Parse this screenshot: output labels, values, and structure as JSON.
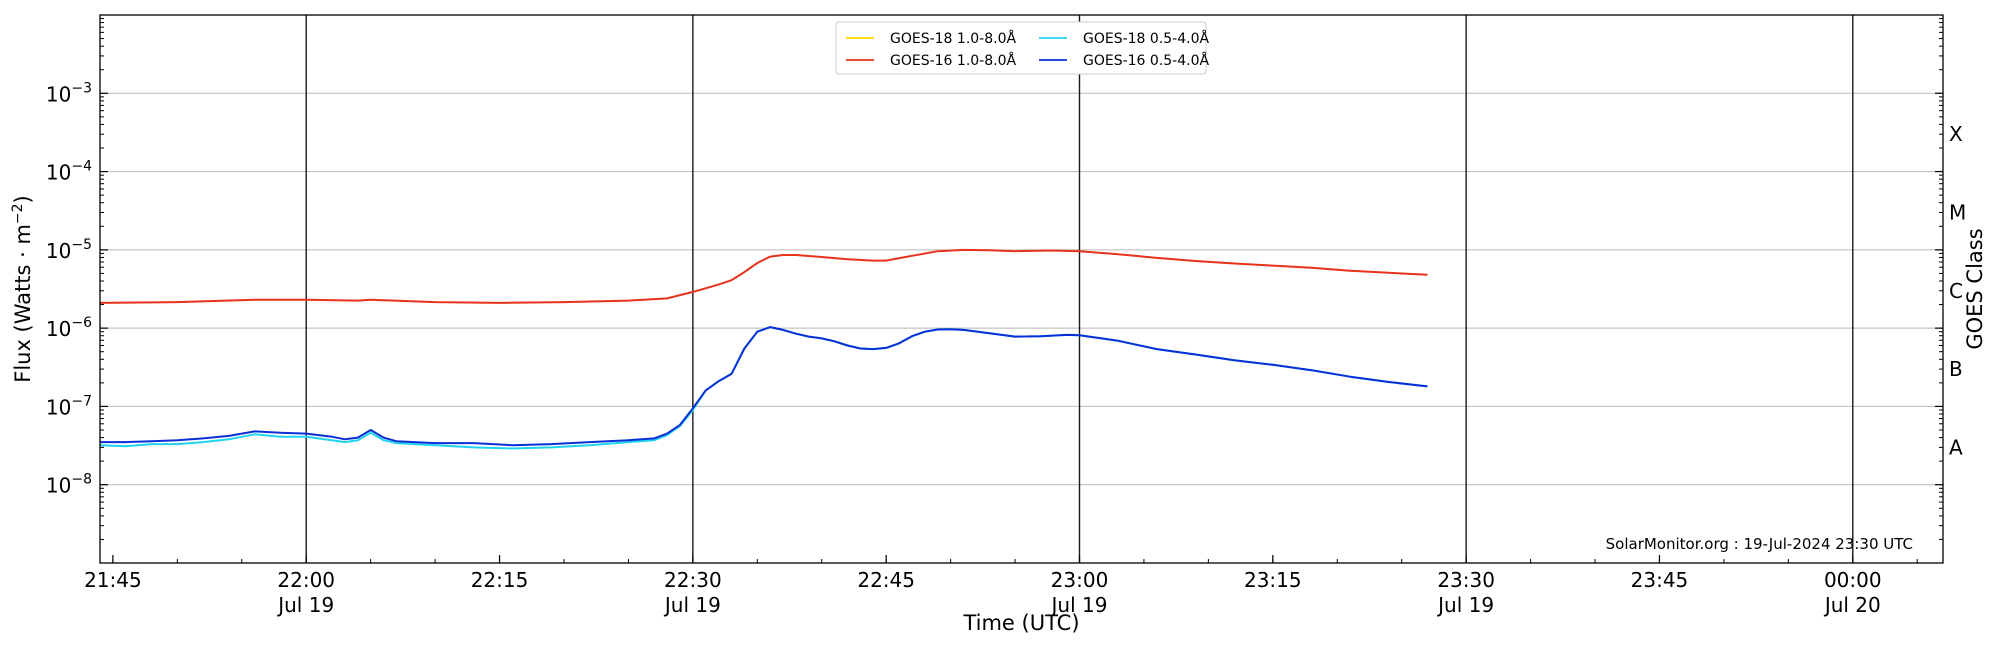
{
  "chart_data": {
    "type": "line",
    "xlabel": "Time (UTC)",
    "ylabel_main": "Flux (Watts",
    "ylabel_mid": " · m",
    "ylabel_sup": "−2",
    "ylabel_end": ")",
    "ylabel_right": "GOES Class",
    "y_scale": "log",
    "ylim": [
      1e-09,
      0.01
    ],
    "xlim": [
      "2024-07-19 21:44",
      "2024-07-20 00:07"
    ],
    "y_ticks": [
      {
        "value": 1e-08,
        "base": "10",
        "exp": "−8"
      },
      {
        "value": 1e-07,
        "base": "10",
        "exp": "−7"
      },
      {
        "value": 1e-06,
        "base": "10",
        "exp": "−6"
      },
      {
        "value": 1e-05,
        "base": "10",
        "exp": "−5"
      },
      {
        "value": 0.0001,
        "base": "10",
        "exp": "−4"
      },
      {
        "value": 0.001,
        "base": "10",
        "exp": "−3"
      }
    ],
    "x_ticks": [
      {
        "time": "2024-07-19 21:45",
        "label": "21:45",
        "sublabel": ""
      },
      {
        "time": "2024-07-19 22:00",
        "label": "22:00",
        "sublabel": "Jul 19"
      },
      {
        "time": "2024-07-19 22:15",
        "label": "22:15",
        "sublabel": ""
      },
      {
        "time": "2024-07-19 22:30",
        "label": "22:30",
        "sublabel": "Jul 19"
      },
      {
        "time": "2024-07-19 22:45",
        "label": "22:45",
        "sublabel": ""
      },
      {
        "time": "2024-07-19 23:00",
        "label": "23:00",
        "sublabel": "Jul 19"
      },
      {
        "time": "2024-07-19 23:15",
        "label": "23:15",
        "sublabel": ""
      },
      {
        "time": "2024-07-19 23:30",
        "label": "23:30",
        "sublabel": "Jul 19"
      },
      {
        "time": "2024-07-19 23:45",
        "label": "23:45",
        "sublabel": ""
      },
      {
        "time": "2024-07-20 00:00",
        "label": "00:00",
        "sublabel": "Jul 20"
      }
    ],
    "vertical_lines": [
      "2024-07-19 22:00",
      "2024-07-19 22:30",
      "2024-07-19 23:00",
      "2024-07-19 23:30",
      "2024-07-20 00:00"
    ],
    "class_labels": [
      {
        "label": "A",
        "value": 3e-08
      },
      {
        "label": "B",
        "value": 3e-07
      },
      {
        "label": "C",
        "value": 3e-06
      },
      {
        "label": "M",
        "value": 3e-05
      },
      {
        "label": "X",
        "value": 0.0003
      }
    ],
    "grid": "horizontal at decades",
    "legend_position": "top-center",
    "credit": "SolarMonitor.org : 19-Jul-2024 23:30 UTC",
    "series": [
      {
        "name": "GOES-18 1.0-8.0Å",
        "color": "#ffd700",
        "points": []
      },
      {
        "name": "GOES-18 0.5-4.0Å",
        "color": "#22d3ee",
        "points": [
          [
            "2024-07-19 21:44",
            3.2e-08
          ],
          [
            "2024-07-19 21:46",
            3.1e-08
          ],
          [
            "2024-07-19 21:48",
            3.3e-08
          ],
          [
            "2024-07-19 21:50",
            3.3e-08
          ],
          [
            "2024-07-19 21:52",
            3.5e-08
          ],
          [
            "2024-07-19 21:54",
            3.8e-08
          ],
          [
            "2024-07-19 21:56",
            4.4e-08
          ],
          [
            "2024-07-19 21:58",
            4.1e-08
          ],
          [
            "2024-07-19 22:00",
            4.1e-08
          ],
          [
            "2024-07-19 22:02",
            3.7e-08
          ],
          [
            "2024-07-19 22:03",
            3.5e-08
          ],
          [
            "2024-07-19 22:04",
            3.7e-08
          ],
          [
            "2024-07-19 22:05",
            4.6e-08
          ],
          [
            "2024-07-19 22:06",
            3.7e-08
          ],
          [
            "2024-07-19 22:07",
            3.4e-08
          ],
          [
            "2024-07-19 22:10",
            3.2e-08
          ],
          [
            "2024-07-19 22:13",
            3e-08
          ],
          [
            "2024-07-19 22:16",
            2.9e-08
          ],
          [
            "2024-07-19 22:19",
            3e-08
          ],
          [
            "2024-07-19 22:22",
            3.2e-08
          ],
          [
            "2024-07-19 22:25",
            3.5e-08
          ],
          [
            "2024-07-19 22:27",
            3.7e-08
          ],
          [
            "2024-07-19 22:28",
            4.3e-08
          ],
          [
            "2024-07-19 22:29",
            5.6e-08
          ],
          [
            "2024-07-19 22:30",
            9e-08
          ],
          [
            "2024-07-19 22:31",
            1.6e-07
          ],
          [
            "2024-07-19 22:32",
            2.1e-07
          ],
          [
            "2024-07-19 22:33",
            2.6e-07
          ],
          [
            "2024-07-19 22:34",
            5.5e-07
          ],
          [
            "2024-07-19 22:35",
            9e-07
          ],
          [
            "2024-07-19 22:36",
            1.03e-06
          ],
          [
            "2024-07-19 22:37",
            9.5e-07
          ],
          [
            "2024-07-19 22:38",
            8.5e-07
          ],
          [
            "2024-07-19 22:39",
            7.8e-07
          ],
          [
            "2024-07-19 22:40",
            7.4e-07
          ],
          [
            "2024-07-19 22:41",
            6.8e-07
          ],
          [
            "2024-07-19 22:42",
            6e-07
          ],
          [
            "2024-07-19 22:43",
            5.5e-07
          ],
          [
            "2024-07-19 22:44",
            5.4e-07
          ],
          [
            "2024-07-19 22:45",
            5.6e-07
          ],
          [
            "2024-07-19 22:46",
            6.4e-07
          ],
          [
            "2024-07-19 22:47",
            7.9e-07
          ],
          [
            "2024-07-19 22:48",
            9e-07
          ],
          [
            "2024-07-19 22:49",
            9.6e-07
          ],
          [
            "2024-07-19 22:50",
            9.7e-07
          ],
          [
            "2024-07-19 22:51",
            9.5e-07
          ],
          [
            "2024-07-19 22:53",
            8.6e-07
          ],
          [
            "2024-07-19 22:55",
            7.8e-07
          ],
          [
            "2024-07-19 22:57",
            7.9e-07
          ],
          [
            "2024-07-19 22:59",
            8.2e-07
          ],
          [
            "2024-07-19 23:00",
            8.1e-07
          ],
          [
            "2024-07-19 23:03",
            6.9e-07
          ],
          [
            "2024-07-19 23:06",
            5.4e-07
          ],
          [
            "2024-07-19 23:09",
            4.6e-07
          ],
          [
            "2024-07-19 23:12",
            3.9e-07
          ],
          [
            "2024-07-19 23:15",
            3.4e-07
          ],
          [
            "2024-07-19 23:18",
            2.9e-07
          ],
          [
            "2024-07-19 23:21",
            2.4e-07
          ],
          [
            "2024-07-19 23:24",
            2.05e-07
          ],
          [
            "2024-07-19 23:27",
            1.8e-07
          ]
        ]
      },
      {
        "name": "GOES-16 1.0-8.0Å",
        "color": "#e8321c",
        "points": [
          [
            "2024-07-19 21:44",
            2.1e-06
          ],
          [
            "2024-07-19 21:50",
            2.15e-06
          ],
          [
            "2024-07-19 21:56",
            2.3e-06
          ],
          [
            "2024-07-19 22:00",
            2.3e-06
          ],
          [
            "2024-07-19 22:04",
            2.25e-06
          ],
          [
            "2024-07-19 22:05",
            2.3e-06
          ],
          [
            "2024-07-19 22:10",
            2.15e-06
          ],
          [
            "2024-07-19 22:15",
            2.1e-06
          ],
          [
            "2024-07-19 22:20",
            2.15e-06
          ],
          [
            "2024-07-19 22:25",
            2.25e-06
          ],
          [
            "2024-07-19 22:28",
            2.4e-06
          ],
          [
            "2024-07-19 22:30",
            2.9e-06
          ],
          [
            "2024-07-19 22:32",
            3.6e-06
          ],
          [
            "2024-07-19 22:33",
            4.1e-06
          ],
          [
            "2024-07-19 22:34",
            5.2e-06
          ],
          [
            "2024-07-19 22:35",
            6.8e-06
          ],
          [
            "2024-07-19 22:36",
            8.2e-06
          ],
          [
            "2024-07-19 22:37",
            8.6e-06
          ],
          [
            "2024-07-19 22:38",
            8.6e-06
          ],
          [
            "2024-07-19 22:40",
            8.1e-06
          ],
          [
            "2024-07-19 22:42",
            7.6e-06
          ],
          [
            "2024-07-19 22:44",
            7.3e-06
          ],
          [
            "2024-07-19 22:45",
            7.3e-06
          ],
          [
            "2024-07-19 22:47",
            8.4e-06
          ],
          [
            "2024-07-19 22:49",
            9.6e-06
          ],
          [
            "2024-07-19 22:51",
            1e-05
          ],
          [
            "2024-07-19 22:53",
            9.9e-06
          ],
          [
            "2024-07-19 22:55",
            9.6e-06
          ],
          [
            "2024-07-19 22:58",
            9.8e-06
          ],
          [
            "2024-07-19 23:00",
            9.6e-06
          ],
          [
            "2024-07-19 23:03",
            8.8e-06
          ],
          [
            "2024-07-19 23:06",
            7.9e-06
          ],
          [
            "2024-07-19 23:09",
            7.2e-06
          ],
          [
            "2024-07-19 23:12",
            6.7e-06
          ],
          [
            "2024-07-19 23:15",
            6.3e-06
          ],
          [
            "2024-07-19 23:18",
            5.9e-06
          ],
          [
            "2024-07-19 23:21",
            5.4e-06
          ],
          [
            "2024-07-19 23:24",
            5.1e-06
          ],
          [
            "2024-07-19 23:27",
            4.8e-06
          ]
        ]
      },
      {
        "name": "GOES-16 0.5-4.0Å",
        "color": "#0a2fd6",
        "points": [
          [
            "2024-07-19 21:44",
            3.5e-08
          ],
          [
            "2024-07-19 21:46",
            3.5e-08
          ],
          [
            "2024-07-19 21:48",
            3.6e-08
          ],
          [
            "2024-07-19 21:50",
            3.7e-08
          ],
          [
            "2024-07-19 21:52",
            3.9e-08
          ],
          [
            "2024-07-19 21:54",
            4.2e-08
          ],
          [
            "2024-07-19 21:56",
            4.8e-08
          ],
          [
            "2024-07-19 21:58",
            4.6e-08
          ],
          [
            "2024-07-19 22:00",
            4.5e-08
          ],
          [
            "2024-07-19 22:02",
            4.1e-08
          ],
          [
            "2024-07-19 22:03",
            3.8e-08
          ],
          [
            "2024-07-19 22:04",
            4e-08
          ],
          [
            "2024-07-19 22:05",
            5e-08
          ],
          [
            "2024-07-19 22:06",
            4e-08
          ],
          [
            "2024-07-19 22:07",
            3.6e-08
          ],
          [
            "2024-07-19 22:10",
            3.4e-08
          ],
          [
            "2024-07-19 22:13",
            3.4e-08
          ],
          [
            "2024-07-19 22:16",
            3.2e-08
          ],
          [
            "2024-07-19 22:19",
            3.3e-08
          ],
          [
            "2024-07-19 22:22",
            3.5e-08
          ],
          [
            "2024-07-19 22:25",
            3.7e-08
          ],
          [
            "2024-07-19 22:27",
            3.9e-08
          ],
          [
            "2024-07-19 22:28",
            4.5e-08
          ],
          [
            "2024-07-19 22:29",
            5.8e-08
          ],
          [
            "2024-07-19 22:30",
            9.5e-08
          ],
          [
            "2024-07-19 22:31",
            1.6e-07
          ],
          [
            "2024-07-19 22:32",
            2.1e-07
          ],
          [
            "2024-07-19 22:33",
            2.6e-07
          ],
          [
            "2024-07-19 22:34",
            5.5e-07
          ],
          [
            "2024-07-19 22:35",
            9e-07
          ],
          [
            "2024-07-19 22:36",
            1.03e-06
          ],
          [
            "2024-07-19 22:37",
            9.5e-07
          ],
          [
            "2024-07-19 22:38",
            8.5e-07
          ],
          [
            "2024-07-19 22:39",
            7.8e-07
          ],
          [
            "2024-07-19 22:40",
            7.4e-07
          ],
          [
            "2024-07-19 22:41",
            6.8e-07
          ],
          [
            "2024-07-19 22:42",
            6e-07
          ],
          [
            "2024-07-19 22:43",
            5.5e-07
          ],
          [
            "2024-07-19 22:44",
            5.4e-07
          ],
          [
            "2024-07-19 22:45",
            5.6e-07
          ],
          [
            "2024-07-19 22:46",
            6.4e-07
          ],
          [
            "2024-07-19 22:47",
            7.9e-07
          ],
          [
            "2024-07-19 22:48",
            9e-07
          ],
          [
            "2024-07-19 22:49",
            9.6e-07
          ],
          [
            "2024-07-19 22:50",
            9.7e-07
          ],
          [
            "2024-07-19 22:51",
            9.5e-07
          ],
          [
            "2024-07-19 22:53",
            8.6e-07
          ],
          [
            "2024-07-19 22:55",
            7.8e-07
          ],
          [
            "2024-07-19 22:57",
            7.9e-07
          ],
          [
            "2024-07-19 22:59",
            8.2e-07
          ],
          [
            "2024-07-19 23:00",
            8.1e-07
          ],
          [
            "2024-07-19 23:03",
            6.9e-07
          ],
          [
            "2024-07-19 23:06",
            5.4e-07
          ],
          [
            "2024-07-19 23:09",
            4.6e-07
          ],
          [
            "2024-07-19 23:12",
            3.9e-07
          ],
          [
            "2024-07-19 23:15",
            3.4e-07
          ],
          [
            "2024-07-19 23:18",
            2.9e-07
          ],
          [
            "2024-07-19 23:21",
            2.4e-07
          ],
          [
            "2024-07-19 23:24",
            2.05e-07
          ],
          [
            "2024-07-19 23:27",
            1.8e-07
          ]
        ]
      }
    ],
    "legend": [
      {
        "name": "GOES-18 1.0-8.0Å",
        "color": "#ffd700"
      },
      {
        "name": "GOES-18 0.5-4.0Å",
        "color": "#22d3ee"
      },
      {
        "name": "GOES-16 1.0-8.0Å",
        "color": "#e8321c"
      },
      {
        "name": "GOES-16 0.5-4.0Å",
        "color": "#0a2fd6"
      }
    ]
  }
}
